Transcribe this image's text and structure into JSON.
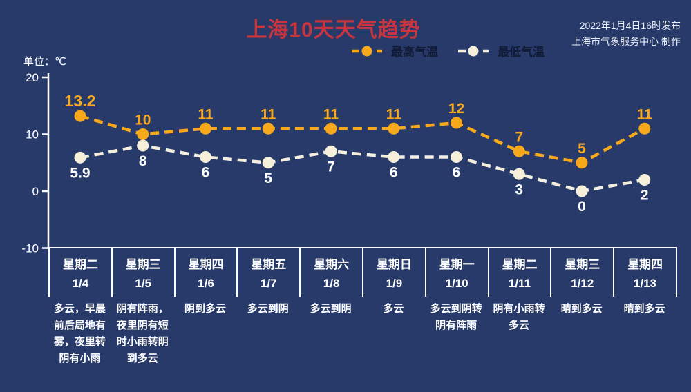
{
  "title": "上海10天天气趋势",
  "source": {
    "line1": "2022年1月4日16时发布",
    "line2": "上海市气象服务中心 制作"
  },
  "unit_label": "单位：℃",
  "colors": {
    "background": "#273a6a",
    "title": "#c9353e",
    "axis": "#ffffff",
    "legend_text": "#111b36",
    "high_series": "#f7a81b",
    "low_series_line": "#f3eedd",
    "low_series_dot": "#f6efda",
    "low_label": "#ffffff"
  },
  "chart_data": {
    "type": "line",
    "title": "上海10天天气趋势",
    "ylabel": "单位：℃",
    "yticks": [
      20,
      10,
      0,
      -10
    ],
    "ylim": [
      -10,
      20
    ],
    "grid": false,
    "legend_position": "top",
    "line_style": "dashed",
    "categories": [
      {
        "weekday": "星期二",
        "date": "1/4"
      },
      {
        "weekday": "星期三",
        "date": "1/5"
      },
      {
        "weekday": "星期四",
        "date": "1/6"
      },
      {
        "weekday": "星期五",
        "date": "1/7"
      },
      {
        "weekday": "星期六",
        "date": "1/8"
      },
      {
        "weekday": "星期日",
        "date": "1/9"
      },
      {
        "weekday": "星期一",
        "date": "1/10"
      },
      {
        "weekday": "星期二",
        "date": "1/11"
      },
      {
        "weekday": "星期三",
        "date": "1/12"
      },
      {
        "weekday": "星期四",
        "date": "1/13"
      }
    ],
    "series": [
      {
        "name": "最高气温",
        "color": "#f7a81b",
        "dot_color": "#f7a81b",
        "label_color": "#f7a81b",
        "values": [
          13.2,
          10,
          11,
          11,
          11,
          11,
          12,
          7,
          5,
          11
        ]
      },
      {
        "name": "最低气温",
        "color": "#f3eedd",
        "dot_color": "#f6efda",
        "label_color": "#ffffff",
        "values": [
          5.9,
          8,
          6,
          5,
          7,
          6,
          6,
          3,
          0,
          2
        ]
      }
    ]
  },
  "forecast": [
    "多云，早晨前后局地有雾，夜里转阴有小雨",
    "阴有阵雨，夜里阴有短时小雨转阴到多云",
    "阴到多云",
    "多云到阴",
    "多云到阴",
    "多云",
    "多云到阴转阴有阵雨",
    "阴有小雨转多云",
    "晴到多云",
    "晴到多云"
  ]
}
